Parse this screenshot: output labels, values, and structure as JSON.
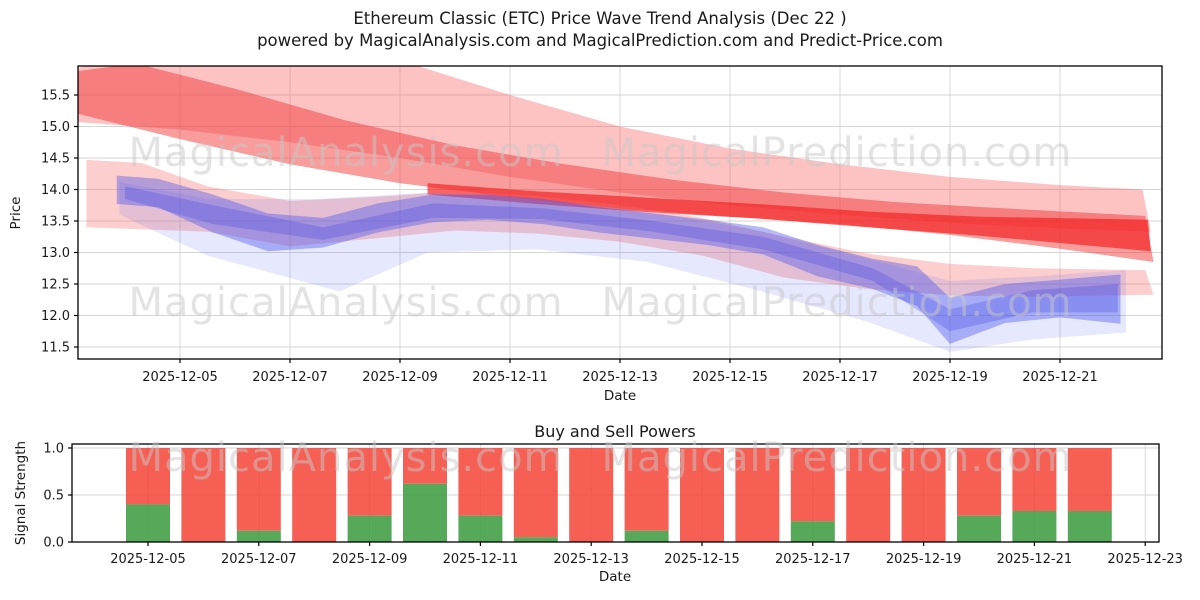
{
  "title": {
    "line1": "Ethereum Classic (ETC) Price Wave Trend Analysis (Dec 22 )",
    "line2": "powered by MagicalAnalysis.com and MagicalPrediction.com and Predict-Price.com"
  },
  "watermark": {
    "left": "MagicalAnalysis.com",
    "right": "MagicalPrediction.com"
  },
  "colors": {
    "sell_red": "#f44336",
    "buy_green": "#43a047",
    "grid": "#d5d5d5",
    "spine": "#000000",
    "watermark": "#c8c8c8"
  },
  "chart_data": [
    {
      "type": "area",
      "name": "price-wave-trend",
      "xlabel": "Date",
      "ylabel": "Price",
      "grid": true,
      "x_unit": "days since 2025-12-03",
      "xlim": [
        0.15,
        19.85
      ],
      "ylim": [
        11.31,
        15.96
      ],
      "yticks": [
        {
          "label": "15.5",
          "value": 15.5
        },
        {
          "label": "15.0",
          "value": 15.0
        },
        {
          "label": "14.5",
          "value": 14.5
        },
        {
          "label": "14.0",
          "value": 14.0
        },
        {
          "label": "13.5",
          "value": 13.5
        },
        {
          "label": "13.0",
          "value": 13.0
        },
        {
          "label": "12.5",
          "value": 12.5
        },
        {
          "label": "12.0",
          "value": 12.0
        },
        {
          "label": "11.5",
          "value": 11.5
        }
      ],
      "xticks": [
        {
          "label": "2025-12-05",
          "day": 2
        },
        {
          "label": "2025-12-07",
          "day": 4
        },
        {
          "label": "2025-12-09",
          "day": 6
        },
        {
          "label": "2025-12-11",
          "day": 8
        },
        {
          "label": "2025-12-13",
          "day": 10
        },
        {
          "label": "2025-12-15",
          "day": 12
        },
        {
          "label": "2025-12-17",
          "day": 14
        },
        {
          "label": "2025-12-19",
          "day": 16
        },
        {
          "label": "2025-12-21",
          "day": 18
        }
      ],
      "bands": [
        {
          "name": "trend-channel-light",
          "color": "#fa5e5e",
          "opacity": 0.38,
          "upper": [
            [
              0.15,
              15.93
            ],
            [
              2,
              16.3
            ],
            [
              6,
              16.05
            ],
            [
              8,
              15.5
            ],
            [
              10,
              15.0
            ],
            [
              12,
              14.65
            ],
            [
              14,
              14.4
            ],
            [
              16,
              14.2
            ],
            [
              18,
              14.07
            ],
            [
              19.5,
              14.0
            ]
          ],
          "lower": [
            [
              0.15,
              15.07
            ],
            [
              2,
              14.95
            ],
            [
              4,
              14.75
            ],
            [
              6,
              14.5
            ],
            [
              8,
              14.2
            ],
            [
              10,
              13.95
            ],
            [
              12,
              13.75
            ],
            [
              14,
              13.6
            ],
            [
              16,
              13.47
            ],
            [
              18,
              13.38
            ],
            [
              19.65,
              13.33
            ]
          ]
        },
        {
          "name": "trend-channel-dark",
          "color": "#f23a3a",
          "opacity": 0.5,
          "upper": [
            [
              0.15,
              15.88
            ],
            [
              1.2,
              16.0
            ],
            [
              3,
              15.6
            ],
            [
              5,
              15.1
            ],
            [
              7,
              14.7
            ],
            [
              9,
              14.4
            ],
            [
              11,
              14.15
            ],
            [
              13,
              13.95
            ],
            [
              15,
              13.8
            ],
            [
              17,
              13.7
            ],
            [
              19.55,
              13.58
            ]
          ],
          "lower": [
            [
              0.15,
              15.2
            ],
            [
              2,
              14.8
            ],
            [
              4,
              14.4
            ],
            [
              6,
              14.1
            ],
            [
              8,
              13.88
            ],
            [
              10,
              13.7
            ],
            [
              12,
              13.57
            ],
            [
              14,
              13.45
            ],
            [
              16,
              13.28
            ],
            [
              18,
              13.06
            ],
            [
              19.7,
              12.85
            ]
          ]
        },
        {
          "name": "trend-core-red",
          "color": "#f32525",
          "opacity": 0.7,
          "upper": [
            [
              6.5,
              14.1
            ],
            [
              8.5,
              13.97
            ],
            [
              10.5,
              13.87
            ],
            [
              12.5,
              13.77
            ],
            [
              14.5,
              13.65
            ],
            [
              16.5,
              13.57
            ],
            [
              19.6,
              13.52
            ]
          ],
          "lower": [
            [
              6.5,
              13.92
            ],
            [
              8.5,
              13.77
            ],
            [
              10.5,
              13.64
            ],
            [
              12.5,
              13.54
            ],
            [
              14.5,
              13.4
            ],
            [
              16.5,
              13.27
            ],
            [
              19.65,
              13.02
            ]
          ]
        },
        {
          "name": "support-envelope-pink",
          "color": "#fa6a6a",
          "opacity": 0.33,
          "upper": [
            [
              0.3,
              14.47
            ],
            [
              1.3,
              14.42
            ],
            [
              2.5,
              14.05
            ],
            [
              4,
              13.82
            ],
            [
              5.5,
              13.88
            ],
            [
              7,
              13.97
            ],
            [
              8.5,
              13.9
            ],
            [
              10,
              13.75
            ],
            [
              11.5,
              13.55
            ],
            [
              13,
              13.25
            ],
            [
              14.5,
              12.98
            ],
            [
              16,
              12.82
            ],
            [
              17.5,
              12.75
            ],
            [
              19.55,
              12.72
            ]
          ],
          "lower": [
            [
              0.3,
              13.4
            ],
            [
              1.3,
              13.37
            ],
            [
              2.5,
              13.33
            ],
            [
              4,
              13.1
            ],
            [
              5.5,
              13.22
            ],
            [
              7,
              13.35
            ],
            [
              8.5,
              13.3
            ],
            [
              10,
              13.17
            ],
            [
              11.5,
              12.95
            ],
            [
              13,
              12.6
            ],
            [
              14.5,
              12.42
            ],
            [
              16,
              12.32
            ],
            [
              17.5,
              12.3
            ],
            [
              19.7,
              12.33
            ]
          ]
        },
        {
          "name": "wave-envelope-blue",
          "color": "#6470f5",
          "opacity": 0.16,
          "upper": [
            [
              0.9,
              14.12
            ],
            [
              2.5,
              13.85
            ],
            [
              4.5,
              13.85
            ],
            [
              6.5,
              13.95
            ],
            [
              8.5,
              13.85
            ],
            [
              10.5,
              13.65
            ],
            [
              12.5,
              13.35
            ],
            [
              14.5,
              12.9
            ],
            [
              16,
              12.55
            ],
            [
              17.5,
              12.62
            ],
            [
              19.2,
              12.72
            ]
          ],
          "lower": [
            [
              0.9,
              13.6
            ],
            [
              2.5,
              12.95
            ],
            [
              4.9,
              12.38
            ],
            [
              6.5,
              13.0
            ],
            [
              8.5,
              13.05
            ],
            [
              10.5,
              12.85
            ],
            [
              12.5,
              12.4
            ],
            [
              14.5,
              11.9
            ],
            [
              16,
              11.42
            ],
            [
              17.5,
              11.62
            ],
            [
              19.2,
              11.73
            ]
          ]
        },
        {
          "name": "wave-band-blue",
          "color": "#4652eb",
          "opacity": 0.4,
          "upper": [
            [
              0.85,
              14.22
            ],
            [
              1.6,
              14.17
            ],
            [
              2.6,
              13.92
            ],
            [
              3.6,
              13.62
            ],
            [
              4.6,
              13.55
            ],
            [
              5.6,
              13.78
            ],
            [
              6.6,
              13.92
            ],
            [
              7.6,
              13.92
            ],
            [
              8.6,
              13.85
            ],
            [
              9.6,
              13.72
            ],
            [
              10.6,
              13.62
            ],
            [
              11.6,
              13.52
            ],
            [
              12.6,
              13.4
            ],
            [
              13.6,
              13.12
            ],
            [
              14.6,
              12.9
            ],
            [
              15.4,
              12.78
            ],
            [
              16,
              12.28
            ],
            [
              17,
              12.5
            ],
            [
              18,
              12.57
            ],
            [
              19.1,
              12.65
            ]
          ],
          "lower": [
            [
              0.85,
              13.77
            ],
            [
              1.6,
              13.72
            ],
            [
              2.6,
              13.32
            ],
            [
              3.6,
              13.02
            ],
            [
              4.6,
              13.08
            ],
            [
              5.6,
              13.32
            ],
            [
              6.6,
              13.48
            ],
            [
              7.6,
              13.52
            ],
            [
              8.6,
              13.45
            ],
            [
              9.6,
              13.32
            ],
            [
              10.6,
              13.22
            ],
            [
              11.6,
              13.12
            ],
            [
              12.6,
              12.97
            ],
            [
              13.6,
              12.62
            ],
            [
              14.6,
              12.42
            ],
            [
              15.4,
              12.15
            ],
            [
              16,
              11.55
            ],
            [
              17,
              11.88
            ],
            [
              18,
              11.97
            ],
            [
              19.1,
              11.87
            ]
          ]
        },
        {
          "name": "wave-core-blue",
          "color": "#3c46e6",
          "opacity": 0.28,
          "upper": [
            [
              1,
              14.05
            ],
            [
              2.6,
              13.75
            ],
            [
              4.6,
              13.4
            ],
            [
              6.6,
              13.78
            ],
            [
              8.6,
              13.7
            ],
            [
              10.6,
              13.5
            ],
            [
              12.6,
              13.25
            ],
            [
              14.6,
              12.75
            ],
            [
              16,
              12.1
            ],
            [
              17.5,
              12.4
            ],
            [
              19.05,
              12.5
            ]
          ],
          "lower": [
            [
              1,
              13.85
            ],
            [
              2.6,
              13.45
            ],
            [
              4.6,
              13.2
            ],
            [
              6.6,
              13.55
            ],
            [
              8.6,
              13.53
            ],
            [
              10.6,
              13.33
            ],
            [
              12.6,
              13.05
            ],
            [
              14.6,
              12.55
            ],
            [
              16,
              11.75
            ],
            [
              17.5,
              12.05
            ],
            [
              19.05,
              12.05
            ]
          ]
        }
      ]
    },
    {
      "type": "bar",
      "name": "buy-sell-powers",
      "stacked": true,
      "title": "Buy and Sell Powers",
      "xlabel": "Date",
      "ylabel": "Signal Strength",
      "grid": true,
      "ylim": [
        0,
        1.04
      ],
      "categories": [
        "2025-12-05",
        "2025-12-06",
        "2025-12-07",
        "2025-12-08",
        "2025-12-09",
        "2025-12-10",
        "2025-12-11",
        "2025-12-12",
        "2025-12-13",
        "2025-12-14",
        "2025-12-15",
        "2025-12-16",
        "2025-12-17",
        "2025-12-18",
        "2025-12-19",
        "2025-12-20",
        "2025-12-21",
        "2025-12-22"
      ],
      "series": [
        {
          "name": "buy",
          "color": "#43a047",
          "opacity": 0.9,
          "values": [
            0.4,
            0.0,
            0.12,
            0.0,
            0.28,
            0.62,
            0.28,
            0.05,
            0.0,
            0.12,
            0.0,
            0.0,
            0.22,
            0.0,
            0.0,
            0.28,
            0.33,
            0.33
          ]
        },
        {
          "name": "sell",
          "color": "#f44336",
          "opacity": 0.85,
          "values": [
            0.6,
            1.0,
            0.88,
            1.0,
            0.72,
            0.38,
            0.72,
            0.95,
            1.0,
            0.88,
            1.0,
            1.0,
            0.78,
            1.0,
            1.0,
            0.72,
            0.67,
            0.67
          ]
        }
      ],
      "yticks": [
        {
          "label": "1.0",
          "value": 1.0
        },
        {
          "label": "0.5",
          "value": 0.5
        },
        {
          "label": "0.0",
          "value": 0.0
        }
      ],
      "xticks": [
        {
          "label": "2025-12-05",
          "index": 0
        },
        {
          "label": "2025-12-07",
          "index": 2
        },
        {
          "label": "2025-12-09",
          "index": 4
        },
        {
          "label": "2025-12-11",
          "index": 6
        },
        {
          "label": "2025-12-13",
          "index": 8
        },
        {
          "label": "2025-12-15",
          "index": 10
        },
        {
          "label": "2025-12-17",
          "index": 12
        },
        {
          "label": "2025-12-19",
          "index": 14
        },
        {
          "label": "2025-12-21",
          "index": 16
        },
        {
          "label": "2025-12-23",
          "index": 18
        }
      ]
    }
  ]
}
